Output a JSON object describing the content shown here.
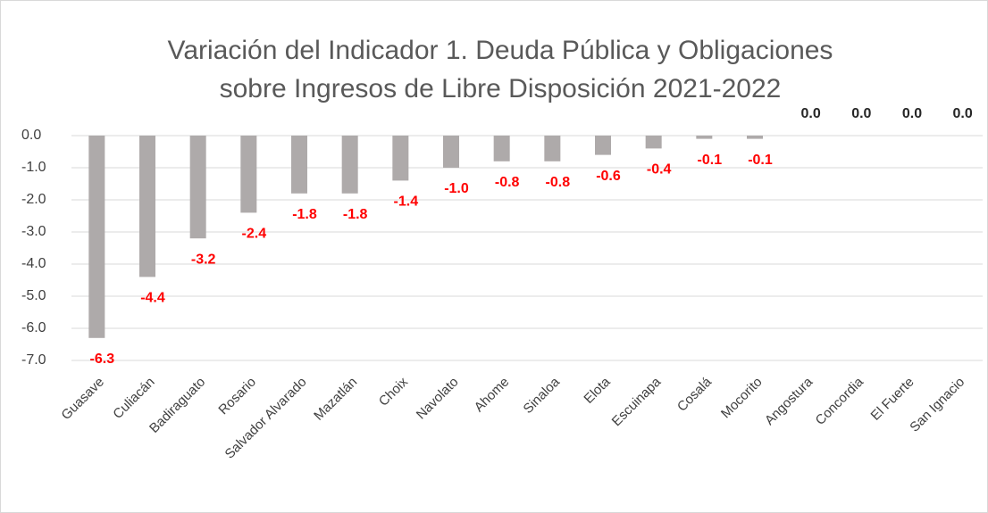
{
  "chart_data": {
    "type": "bar",
    "title": [
      "Variación del Indicador 1. Deuda Pública y Obligaciones",
      "sobre Ingresos de Libre Disposición 2021-2022"
    ],
    "categories": [
      "Guasave",
      "Culiacán",
      "Badiraguato",
      "Rosario",
      "Salvador Alvarado",
      "Mazatlán",
      "Choix",
      "Navolato",
      "Ahome",
      "Sinaloa",
      "Elota",
      "Escuinapa",
      "Cosalá",
      "Mocorito",
      "Angostura",
      "Concordia",
      "El Fuerte",
      "San Ignacio"
    ],
    "values": [
      -6.3,
      -4.4,
      -3.2,
      -2.4,
      -1.8,
      -1.8,
      -1.4,
      -1.0,
      -0.8,
      -0.8,
      -0.6,
      -0.4,
      -0.1,
      -0.1,
      0,
      0,
      0,
      0
    ],
    "value_labels": [
      "-6.3",
      "-4.4",
      "-3.2",
      "-2.4",
      "-1.8",
      "-1.8",
      "-1.4",
      "-1.0",
      "-0.8",
      "-0.8",
      "-0.6",
      "-0.4",
      "-0.1",
      "-0.1",
      "0.0",
      "0.0",
      "0.0",
      "0.0"
    ],
    "color": "#aeaaaa",
    "label_colors": {
      "negative": "#ff0000",
      "other": "#262626"
    },
    "ylim": [
      -7,
      0
    ],
    "yticks": [
      {
        "value": 0,
        "label": "0.0"
      },
      {
        "value": -1,
        "label": "-1.0"
      },
      {
        "value": -2,
        "label": "-2.0"
      },
      {
        "value": -3,
        "label": "-3.0"
      },
      {
        "value": -4,
        "label": "-4.0"
      },
      {
        "value": -5,
        "label": "-5.0"
      },
      {
        "value": -6,
        "label": "-6.0"
      },
      {
        "value": -7,
        "label": "-7.0"
      }
    ],
    "grid": true
  }
}
